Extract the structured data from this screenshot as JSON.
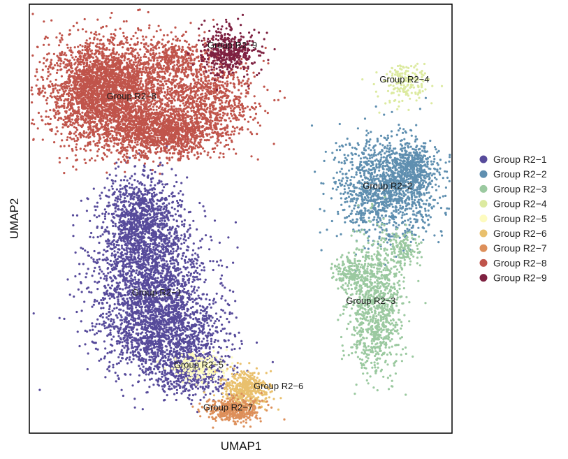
{
  "chart_data": {
    "type": "scatter",
    "title": "",
    "xlabel": "UMAP1",
    "ylabel": "UMAP2",
    "grid": false,
    "legend_position": "right",
    "xlim": [
      0,
      100
    ],
    "ylim": [
      0,
      100
    ],
    "series": [
      {
        "name": "Group R2−1",
        "color": "#574b9b",
        "label_at": [
          30,
          32
        ],
        "regions": [
          [
            28,
            36,
            12,
            17,
            2200
          ],
          [
            33,
            23,
            12,
            9,
            1100
          ],
          [
            26,
            51,
            8,
            8,
            700
          ],
          [
            38,
            14,
            8,
            5,
            500
          ]
        ]
      },
      {
        "name": "Group R2−2",
        "color": "#5f8fb0",
        "label_at": [
          85,
          57
        ],
        "regions": [
          [
            85,
            57,
            11,
            11,
            1400
          ],
          [
            91,
            62,
            5,
            5,
            300
          ]
        ]
      },
      {
        "name": "Group R2−3",
        "color": "#9bc9a0",
        "label_at": [
          81,
          30
        ],
        "regions": [
          [
            82,
            30,
            6,
            14,
            1000
          ],
          [
            76,
            37,
            4,
            3,
            150
          ],
          [
            89,
            43,
            3,
            4,
            120
          ]
        ]
      },
      {
        "name": "Group R2−4",
        "color": "#dceaa0",
        "label_at": [
          89,
          82
        ],
        "regions": [
          [
            89,
            82,
            6,
            4,
            180
          ]
        ]
      },
      {
        "name": "Group R2−5",
        "color": "#fdfbbf",
        "label_at": [
          40,
          15
        ],
        "regions": [
          [
            40,
            15,
            6,
            3,
            220
          ]
        ]
      },
      {
        "name": "Group R2−6",
        "color": "#e9c06d",
        "label_at": [
          59,
          10
        ],
        "regions": [
          [
            51,
            10,
            5,
            4,
            450
          ]
        ]
      },
      {
        "name": "Group R2−7",
        "color": "#dd8f5a",
        "label_at": [
          47,
          5
        ],
        "regions": [
          [
            48,
            5,
            6,
            2.5,
            400
          ]
        ]
      },
      {
        "name": "Group R2−8",
        "color": "#c0544b",
        "label_at": [
          24,
          78
        ],
        "regions": [
          [
            18,
            80,
            13,
            11,
            3200
          ],
          [
            31,
            70,
            13,
            5,
            1200
          ],
          [
            40,
            78,
            12,
            9,
            1000
          ],
          [
            34,
            88,
            8,
            4,
            300
          ]
        ]
      },
      {
        "name": "Group R2−9",
        "color": "#7e2141",
        "label_at": [
          48,
          90
        ],
        "regions": [
          [
            47,
            89,
            6,
            5,
            450
          ]
        ]
      }
    ]
  }
}
